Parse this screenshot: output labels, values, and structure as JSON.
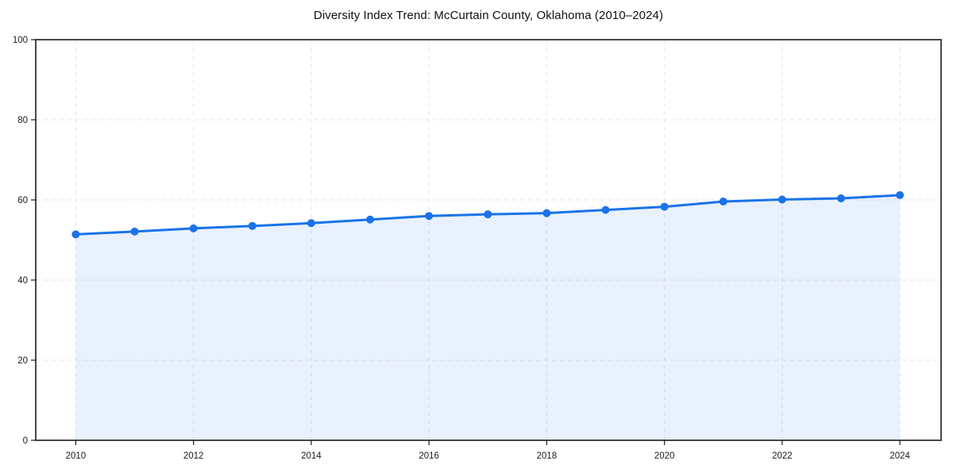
{
  "chart_data": {
    "type": "area",
    "title": "Diversity Index Trend: McCurtain County, Oklahoma (2010–2024)",
    "x": [
      2010,
      2011,
      2012,
      2013,
      2014,
      2015,
      2016,
      2017,
      2018,
      2019,
      2020,
      2021,
      2022,
      2023,
      2024
    ],
    "series": [
      {
        "name": "Diversity Index",
        "values": [
          51.4,
          52.1,
          52.9,
          53.5,
          54.2,
          55.1,
          56.0,
          56.4,
          56.7,
          57.5,
          58.3,
          59.6,
          60.1,
          60.4,
          61.2
        ]
      }
    ],
    "xlabel": "",
    "ylabel": "",
    "xlim": [
      2009.32,
      2024.7
    ],
    "ylim": [
      0,
      100
    ],
    "xticks": [
      2010,
      2012,
      2014,
      2016,
      2018,
      2020,
      2022,
      2024
    ],
    "yticks": [
      0,
      20,
      40,
      60,
      80,
      100
    ],
    "grid": true,
    "grid_style": "dashed",
    "legend": false,
    "marker": "circle",
    "colors": {
      "line": "#1a73e8",
      "marker": "#1a73e8",
      "fill": "rgba(26,115,232,0.10)",
      "grid": "#e4e4e4",
      "spine": "#1a1a1a",
      "tick_label": "#1a1a1a",
      "title": "#111111",
      "background": "#ffffff"
    }
  }
}
